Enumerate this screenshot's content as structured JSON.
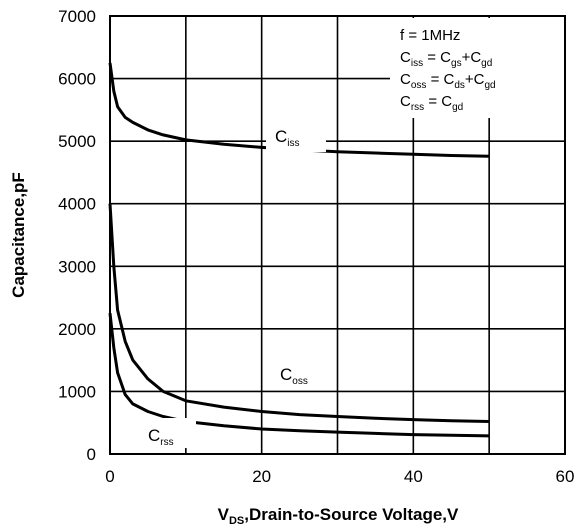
{
  "chart_data": {
    "type": "line",
    "xlabel_main": "V",
    "xlabel_sub": "DS",
    "xlabel_rest": ",Drain-to-Source Voltage,V",
    "ylabel": "Capacitance,pF",
    "xlim": [
      0,
      60
    ],
    "ylim": [
      0,
      7000
    ],
    "xticks": [
      0,
      20,
      40,
      60
    ],
    "yticks": [
      0,
      1000,
      2000,
      3000,
      4000,
      5000,
      6000,
      7000
    ],
    "grid": true,
    "series": [
      {
        "name": "Ciss",
        "x": [
          0,
          0.5,
          1,
          2,
          3,
          5,
          7,
          10,
          15,
          20,
          25,
          30,
          35,
          40,
          45,
          50
        ],
        "values": [
          6250,
          5800,
          5550,
          5380,
          5300,
          5180,
          5100,
          5020,
          4950,
          4900,
          4860,
          4830,
          4810,
          4790,
          4770,
          4760
        ]
      },
      {
        "name": "Coss",
        "x": [
          0,
          0.5,
          1,
          2,
          3,
          5,
          7,
          10,
          15,
          20,
          25,
          30,
          35,
          40,
          45,
          50
        ],
        "values": [
          4000,
          3000,
          2300,
          1800,
          1500,
          1200,
          1000,
          850,
          750,
          680,
          630,
          600,
          570,
          550,
          530,
          520
        ]
      },
      {
        "name": "Crss",
        "x": [
          0,
          0.5,
          1,
          2,
          3,
          5,
          7,
          10,
          15,
          20,
          25,
          30,
          35,
          40,
          45,
          50
        ],
        "values": [
          2250,
          1700,
          1300,
          950,
          800,
          680,
          600,
          520,
          450,
          400,
          370,
          350,
          330,
          310,
          300,
          290
        ]
      }
    ],
    "series_labels": {
      "ciss": {
        "main": "C",
        "sub": "iss"
      },
      "coss": {
        "main": "C",
        "sub": "oss"
      },
      "crss": {
        "main": "C",
        "sub": "rss"
      }
    },
    "legend_box": {
      "freq": "f = 1MHz",
      "eq1": {
        "a": "C",
        "a_sub": "iss",
        "eq": " = C",
        "b_sub": "gs",
        "plus": "+C",
        "c_sub": "gd"
      },
      "eq2": {
        "a": "C",
        "a_sub": "oss",
        "eq": " = C",
        "b_sub": "ds",
        "plus": "+C",
        "c_sub": "gd"
      },
      "eq3": {
        "a": "C",
        "a_sub": "rss",
        "eq": " = C",
        "b_sub": "gd"
      }
    }
  }
}
